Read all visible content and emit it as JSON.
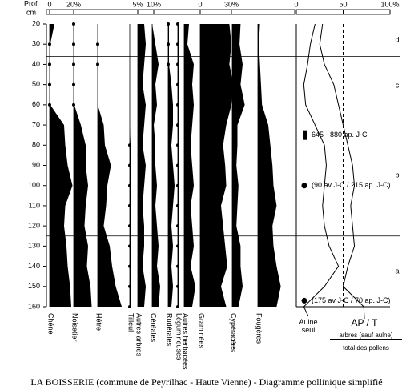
{
  "chart_data": {
    "type": "pollen",
    "y_label": "Prof.",
    "y_unit": "cm",
    "depths": [
      20,
      30,
      40,
      50,
      60,
      70,
      80,
      90,
      100,
      110,
      120,
      130,
      140,
      150,
      160
    ],
    "ylim": [
      20,
      160
    ],
    "yticks": [
      20,
      30,
      40,
      50,
      60,
      70,
      80,
      90,
      100,
      110,
      120,
      130,
      140,
      150,
      160
    ],
    "taxa": [
      {
        "name": "Chêne",
        "values": [
          4,
          0.5,
          0.5,
          0.5,
          0.5,
          12,
          13,
          15,
          19,
          13,
          12,
          14,
          15,
          17,
          18
        ],
        "scale_ticks": [
          0,
          {
            "value": 20,
            "label": "20%"
          }
        ]
      },
      {
        "name": "Noisetier",
        "values": [
          0.5,
          0.5,
          0.5,
          0.5,
          0.5,
          6,
          10,
          10,
          12,
          10,
          9,
          12,
          11,
          14,
          15
        ]
      },
      {
        "name": "Hêtre",
        "values": [
          0,
          0.5,
          0.5,
          0,
          0,
          5,
          6,
          11,
          8,
          7,
          5,
          10,
          12,
          15,
          20
        ]
      },
      {
        "name": "Tilleul",
        "values": [
          0,
          0,
          0,
          0,
          0,
          0,
          0.5,
          0.5,
          0.5,
          0.5,
          0.5,
          0.5,
          0.5,
          0.5,
          0.5
        ],
        "scale_ticks": [
          {
            "value": 5,
            "label": "5%"
          }
        ]
      },
      {
        "name": "Autres arbres",
        "values": [
          4,
          5,
          4,
          3,
          5,
          4,
          3,
          5,
          4,
          3,
          4,
          4,
          3,
          5,
          4
        ],
        "scale_ticks": [
          {
            "value": 10,
            "label": "10%"
          }
        ]
      },
      {
        "name": "Céréales",
        "values": [
          0,
          2,
          4,
          2,
          3,
          1,
          2,
          2,
          3,
          2,
          3,
          4,
          3,
          5,
          4
        ]
      },
      {
        "name": "Rudérales",
        "values": [
          0.5,
          0.5,
          0.5,
          2,
          3,
          3,
          2,
          3,
          4,
          3,
          2,
          3,
          2,
          3,
          2
        ]
      },
      {
        "name": "Légumineuses",
        "values": [
          0.5,
          0.5,
          0.5,
          0.5,
          0.5,
          0.5,
          0.5,
          0.5,
          0.5,
          0.5,
          0.5,
          0.5,
          0.5,
          0.5,
          0.5
        ]
      },
      {
        "name": "Autres herbacées",
        "values": [
          3,
          2,
          6,
          5,
          6,
          5,
          4,
          5,
          6,
          4,
          5,
          6,
          4,
          7,
          5
        ]
      },
      {
        "name": "Graminées",
        "values": [
          28,
          30,
          28,
          32,
          30,
          25,
          22,
          24,
          25,
          20,
          22,
          24,
          26,
          20,
          25
        ],
        "scale_ticks": [
          0,
          {
            "value": 30,
            "label": "30%"
          }
        ]
      },
      {
        "name": "Cypéracées",
        "values": [
          8,
          7,
          10,
          8,
          12,
          5,
          5,
          4,
          6,
          5,
          4,
          8,
          8,
          10,
          6
        ]
      },
      {
        "name": "Fougères",
        "values": [
          2,
          1,
          2,
          3,
          4,
          10,
          12,
          14,
          15,
          18,
          14,
          15,
          18,
          22,
          18
        ]
      }
    ],
    "zones": {
      "boundaries": [
        36,
        65,
        125
      ],
      "labels": [
        "d",
        "c",
        "b",
        "a"
      ]
    },
    "ap_panel": {
      "xlim": [
        0,
        100
      ],
      "xticks": [
        0,
        50,
        {
          "value": 100,
          "label": "100%"
        }
      ],
      "series": [
        {
          "name": "Aulne seul",
          "values": [
            20,
            15,
            12,
            8,
            10,
            20,
            30,
            32,
            30,
            28,
            30,
            35,
            45,
            30,
            8
          ]
        },
        {
          "name": "AP / T",
          "values": [
            28,
            25,
            30,
            40,
            45,
            50,
            55,
            60,
            62,
            58,
            60,
            62,
            55,
            50,
            72
          ]
        }
      ],
      "numerator": "arbres (sauf aulne)",
      "denominator": "total des pollens"
    },
    "annotations": [
      {
        "text": "645 - 880 ap. J-C",
        "depth": 75,
        "marker": "bar"
      },
      {
        "text": "(90 av J-C / 215 ap. J-C)",
        "depth": 100,
        "marker": "dot"
      },
      {
        "text": "(175 av J-C / 70 ap. J-C)",
        "depth": 157,
        "marker": "dot"
      }
    ],
    "caption": "LA BOISSERIE (commune de Peyrilhac - Haute Vienne) - Diagramme pollinique simplifié"
  }
}
